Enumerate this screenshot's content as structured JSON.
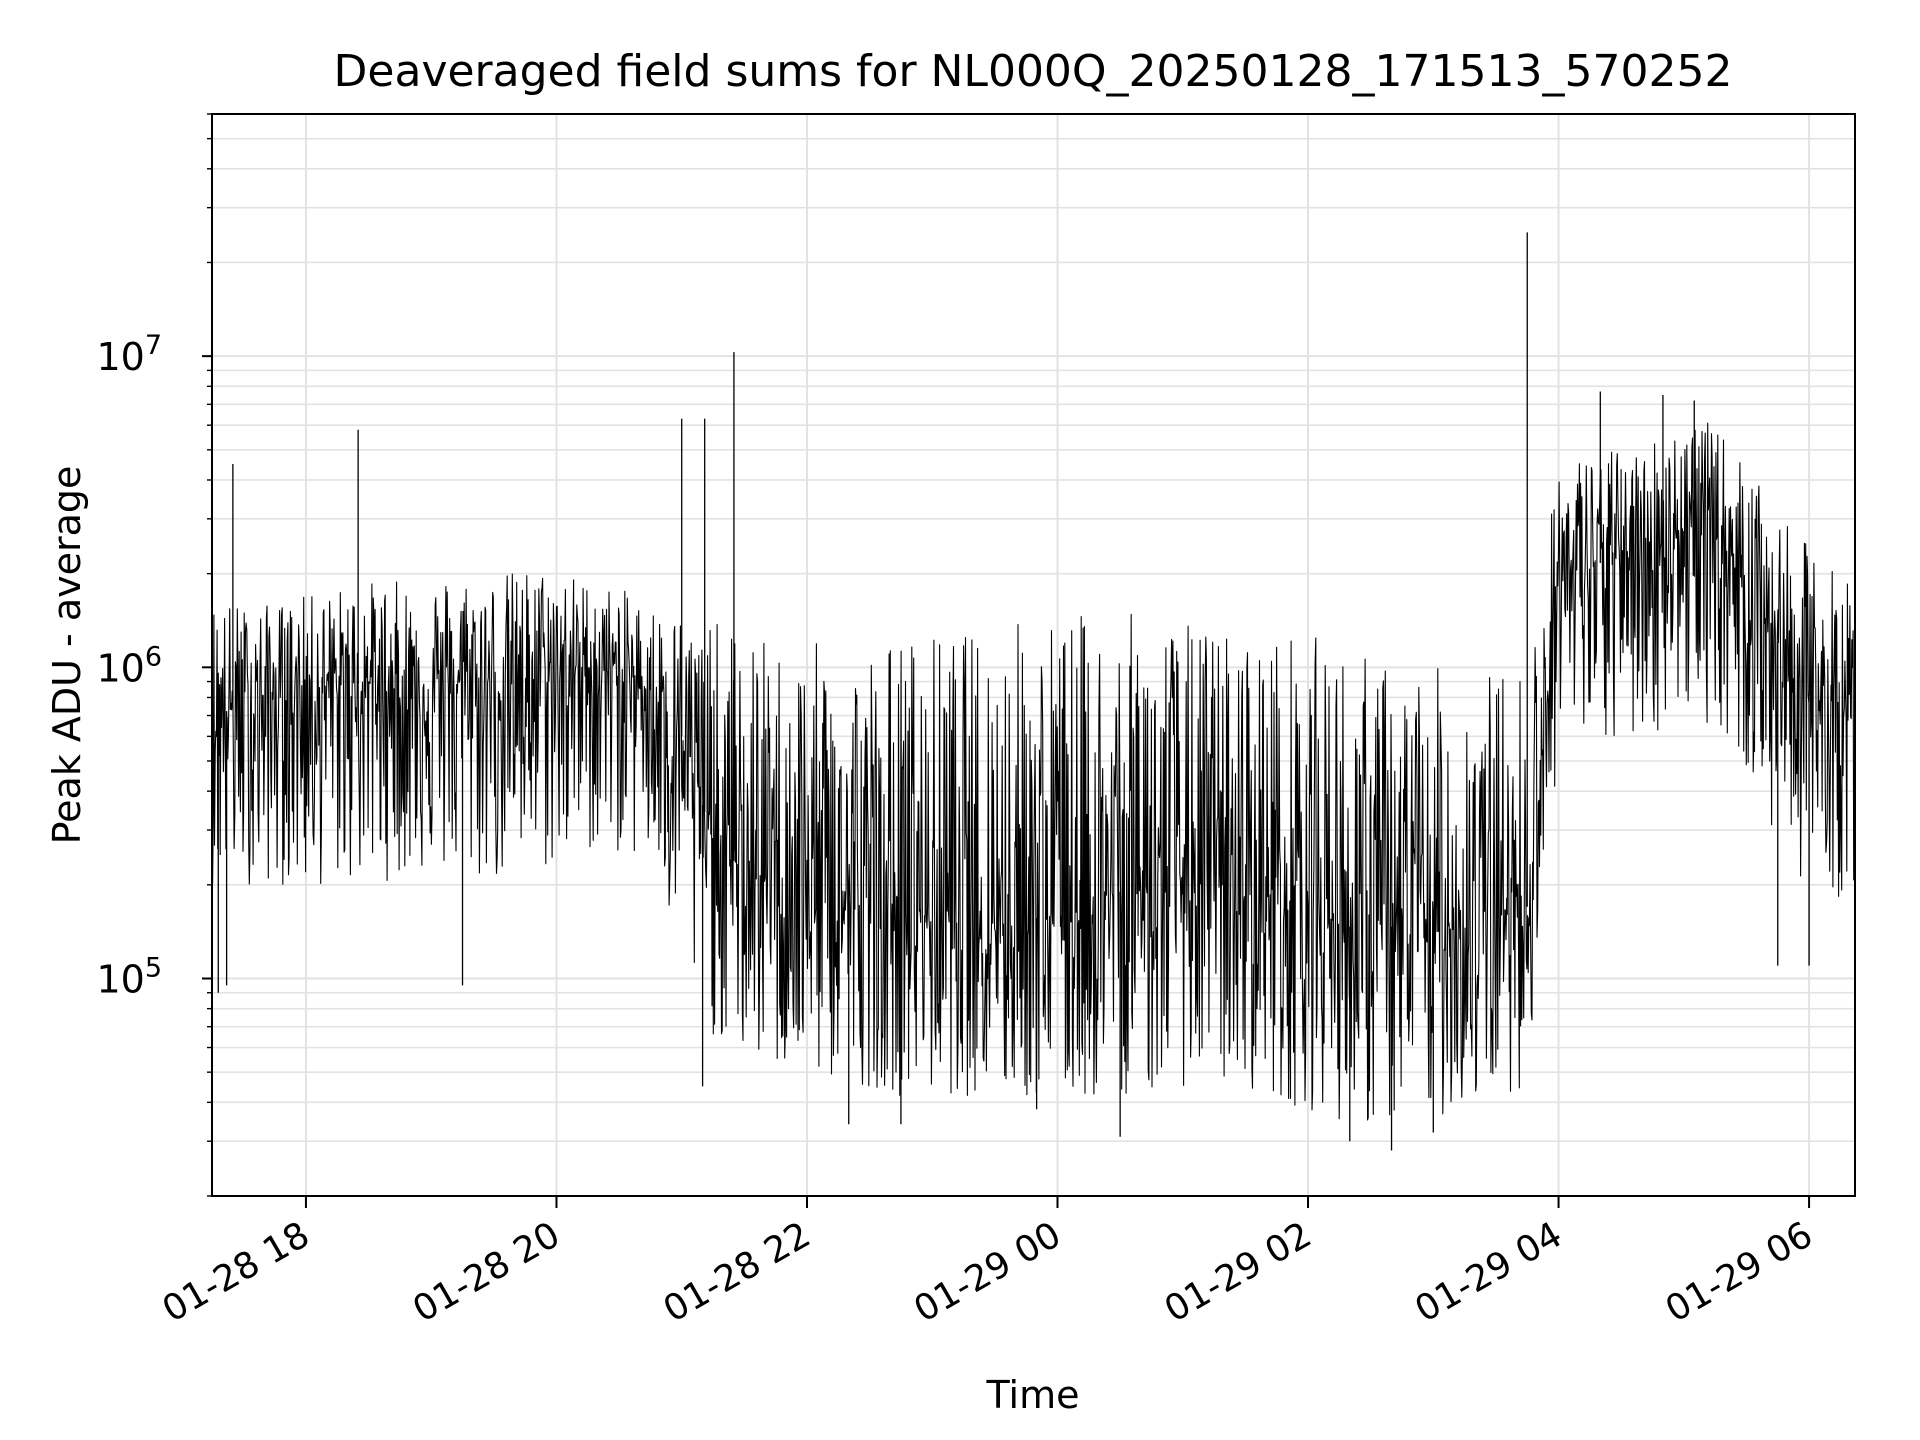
{
  "chart_data": {
    "type": "line",
    "title": "Deaveraged field sums for NL000Q_20250128_171513_570252",
    "xlabel": "Time",
    "ylabel": "Peak ADU - average",
    "xlim": [
      "2025-01-28 17:15",
      "2025-01-29 06:22"
    ],
    "ylim": [
      20000,
      60000000
    ],
    "yscale": "log",
    "grid": true,
    "line_color": "#000000",
    "x_ticks": [
      {
        "time": "2025-01-28 18:00",
        "label": "01-28 18"
      },
      {
        "time": "2025-01-28 20:00",
        "label": "01-28 20"
      },
      {
        "time": "2025-01-28 22:00",
        "label": "01-28 22"
      },
      {
        "time": "2025-01-29 00:00",
        "label": "01-29 00"
      },
      {
        "time": "2025-01-29 02:00",
        "label": "01-29 02"
      },
      {
        "time": "2025-01-29 04:00",
        "label": "01-29 04"
      },
      {
        "time": "2025-01-29 06:00",
        "label": "01-29 06"
      }
    ],
    "y_ticks": [
      {
        "value": 100000,
        "base": "10",
        "exp": "5"
      },
      {
        "value": 1000000,
        "base": "10",
        "exp": "6"
      },
      {
        "value": 10000000,
        "base": "10",
        "exp": "7"
      }
    ],
    "x": [
      "2025-01-28 17:15",
      "2025-01-28 17:30",
      "2025-01-28 17:45",
      "2025-01-28 18:00",
      "2025-01-28 18:15",
      "2025-01-28 18:30",
      "2025-01-28 18:45",
      "2025-01-28 19:00",
      "2025-01-28 19:15",
      "2025-01-28 19:30",
      "2025-01-28 19:45",
      "2025-01-28 20:00",
      "2025-01-28 20:15",
      "2025-01-28 20:30",
      "2025-01-28 20:45",
      "2025-01-28 21:00",
      "2025-01-28 21:15",
      "2025-01-28 21:30",
      "2025-01-28 21:45",
      "2025-01-28 22:00",
      "2025-01-28 22:15",
      "2025-01-28 22:30",
      "2025-01-28 22:45",
      "2025-01-28 23:00",
      "2025-01-28 23:15",
      "2025-01-28 23:30",
      "2025-01-28 23:45",
      "2025-01-29 00:00",
      "2025-01-29 00:15",
      "2025-01-29 00:30",
      "2025-01-29 00:45",
      "2025-01-29 01:00",
      "2025-01-29 01:15",
      "2025-01-29 01:30",
      "2025-01-29 01:45",
      "2025-01-29 02:00",
      "2025-01-29 02:15",
      "2025-01-29 02:30",
      "2025-01-29 02:45",
      "2025-01-29 03:00",
      "2025-01-29 03:15",
      "2025-01-29 03:30",
      "2025-01-29 03:45",
      "2025-01-29 04:00",
      "2025-01-29 04:15",
      "2025-01-29 04:30",
      "2025-01-29 04:45",
      "2025-01-29 05:00",
      "2025-01-29 05:15",
      "2025-01-29 05:30",
      "2025-01-29 05:45",
      "2025-01-29 06:00",
      "2025-01-29 06:15"
    ],
    "series": [
      {
        "values": [
          700000,
          750000,
          800000,
          850000,
          850000,
          900000,
          800000,
          850000,
          900000,
          850000,
          900000,
          950000,
          1000000,
          950000,
          850000,
          600000,
          280000,
          220000,
          200000,
          190000,
          180000,
          170000,
          165000,
          160000,
          170000,
          160000,
          150000,
          170000,
          160000,
          190000,
          200000,
          210000,
          200000,
          180000,
          190000,
          190000,
          150000,
          140000,
          150000,
          140000,
          150000,
          160000,
          170000,
          1900000,
          2100000,
          2300000,
          2500000,
          2800000,
          2600000,
          2000000,
          1200000,
          800000,
          700000
        ],
        "upper": [
          1700000,
          1600000,
          1600000,
          1700000,
          1800000,
          1900000,
          1900000,
          2000000,
          2000000,
          2000000,
          2100000,
          2100000,
          1900000,
          1800000,
          1600000,
          1500000,
          1400000,
          1300000,
          1200000,
          1200000,
          1200000,
          1200000,
          1300000,
          1300000,
          1300000,
          1400000,
          1500000,
          1500000,
          1500000,
          1500000,
          1500000,
          1400000,
          1400000,
          1300000,
          1300000,
          1300000,
          1200000,
          1100000,
          1000000,
          1000000,
          1000000,
          1000000,
          1000000,
          4500000,
          5000000,
          5000000,
          5500000,
          6500000,
          6000000,
          4500000,
          3000000,
          2500000,
          2000000
        ],
        "lower": [
          200000,
          200000,
          200000,
          190000,
          200000,
          200000,
          210000,
          220000,
          200000,
          200000,
          210000,
          220000,
          250000,
          250000,
          230000,
          100000,
          65000,
          55000,
          50000,
          48000,
          45000,
          45000,
          42000,
          42000,
          42000,
          40000,
          40000,
          40000,
          40000,
          42000,
          42000,
          45000,
          45000,
          45000,
          40000,
          38000,
          35000,
          33000,
          33000,
          35000,
          38000,
          42000,
          45000,
          550000,
          500000,
          550000,
          600000,
          700000,
          650000,
          450000,
          250000,
          200000,
          180000
        ]
      }
    ],
    "spikes": [
      {
        "time": "2025-01-28 17:25",
        "value": 4500000
      },
      {
        "time": "2025-01-28 18:25",
        "value": 5800000
      },
      {
        "time": "2025-01-28 21:00",
        "value": 6300000
      },
      {
        "time": "2025-01-28 21:11",
        "value": 6300000
      },
      {
        "time": "2025-01-28 21:25",
        "value": 10300000
      },
      {
        "time": "2025-01-29 03:45",
        "value": 25000000
      },
      {
        "time": "2025-01-29 04:20",
        "value": 7700000
      },
      {
        "time": "2025-01-29 04:50",
        "value": 7500000
      },
      {
        "time": "2025-01-29 05:05",
        "value": 7200000
      }
    ],
    "dips": [
      {
        "time": "2025-01-28 17:18",
        "value": 90000
      },
      {
        "time": "2025-01-28 17:22",
        "value": 95000
      },
      {
        "time": "2025-01-28 19:15",
        "value": 95000
      },
      {
        "time": "2025-01-28 21:10",
        "value": 45000
      },
      {
        "time": "2025-01-28 22:20",
        "value": 34000
      },
      {
        "time": "2025-01-28 22:45",
        "value": 34000
      },
      {
        "time": "2025-01-28 23:50",
        "value": 38000
      },
      {
        "time": "2025-01-29 00:30",
        "value": 31000
      },
      {
        "time": "2025-01-29 02:20",
        "value": 30000
      },
      {
        "time": "2025-01-29 02:40",
        "value": 28000
      },
      {
        "time": "2025-01-29 03:00",
        "value": 32000
      },
      {
        "time": "2025-01-29 05:45",
        "value": 110000
      },
      {
        "time": "2025-01-29 06:00",
        "value": 110000
      }
    ]
  }
}
